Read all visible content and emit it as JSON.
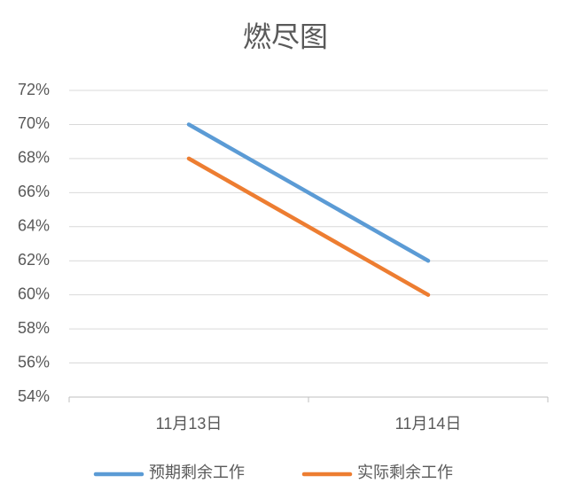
{
  "chart_data": {
    "type": "line",
    "title": "燃尽图",
    "categories": [
      "11月13日",
      "11月14日"
    ],
    "series": [
      {
        "name": "预期剩余工作",
        "color": "#5b9bd5",
        "values": [
          70,
          62
        ]
      },
      {
        "name": "实际剩余工作",
        "color": "#ed7d31",
        "values": [
          68,
          60
        ]
      }
    ],
    "ylim": [
      54,
      72
    ],
    "yticks": [
      {
        "value": 54,
        "label": "54%"
      },
      {
        "value": 56,
        "label": "56%"
      },
      {
        "value": 58,
        "label": "58%"
      },
      {
        "value": 60,
        "label": "60%"
      },
      {
        "value": 62,
        "label": "62%"
      },
      {
        "value": 64,
        "label": "64%"
      },
      {
        "value": 66,
        "label": "66%"
      },
      {
        "value": 68,
        "label": "68%"
      },
      {
        "value": 70,
        "label": "70%"
      },
      {
        "value": 72,
        "label": "72%"
      }
    ],
    "grid": true,
    "legend": "bottom"
  }
}
